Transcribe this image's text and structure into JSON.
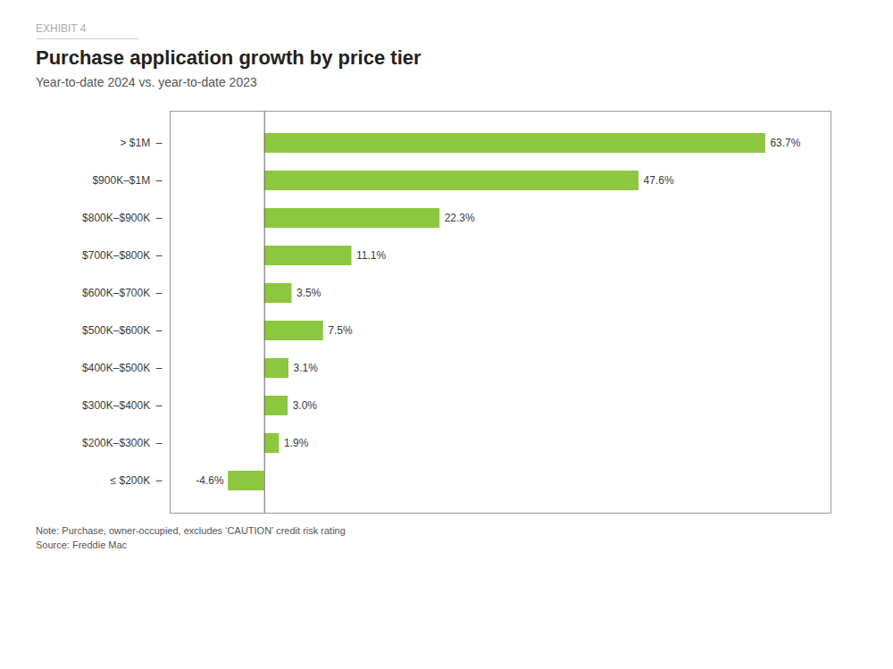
{
  "chart_data": {
    "type": "bar",
    "orientation": "horizontal",
    "title": "Purchase application growth by price tier",
    "subtitle": "Year-to-date 2024 vs. year-to-date 2023",
    "annotations": [
      "EXHIBIT 4",
      "Note: Purchase, owner-occupied, excludes ‘CAUTION’ credit risk rating",
      "Source: Freddie Mac"
    ],
    "categories": [
      "> $1M  –",
      "$900K–$1M  –",
      "$800K–$900K  –",
      "$700K–$800K  –",
      "$600K–$700K  –",
      "$500K–$600K  –",
      "$400K–$500K  –",
      "$300K–$400K  –",
      "$200K–$300K  –",
      "≤ $200K  –"
    ],
    "values": [
      63.7,
      47.6,
      22.3,
      11.1,
      3.5,
      7.5,
      3.1,
      3.0,
      1.9,
      -4.6
    ],
    "value_labels": [
      "63.7%",
      "47.6%",
      "22.3%",
      "11.1%",
      "3.5%",
      "7.5%",
      "3.1%",
      "3.0%",
      "1.9%",
      "-4.6%"
    ],
    "data_labels": true,
    "color": "#8DC63F",
    "xlim": [
      -12,
      72
    ],
    "xticks": [],
    "tick_labels": "y",
    "grid": false
  }
}
